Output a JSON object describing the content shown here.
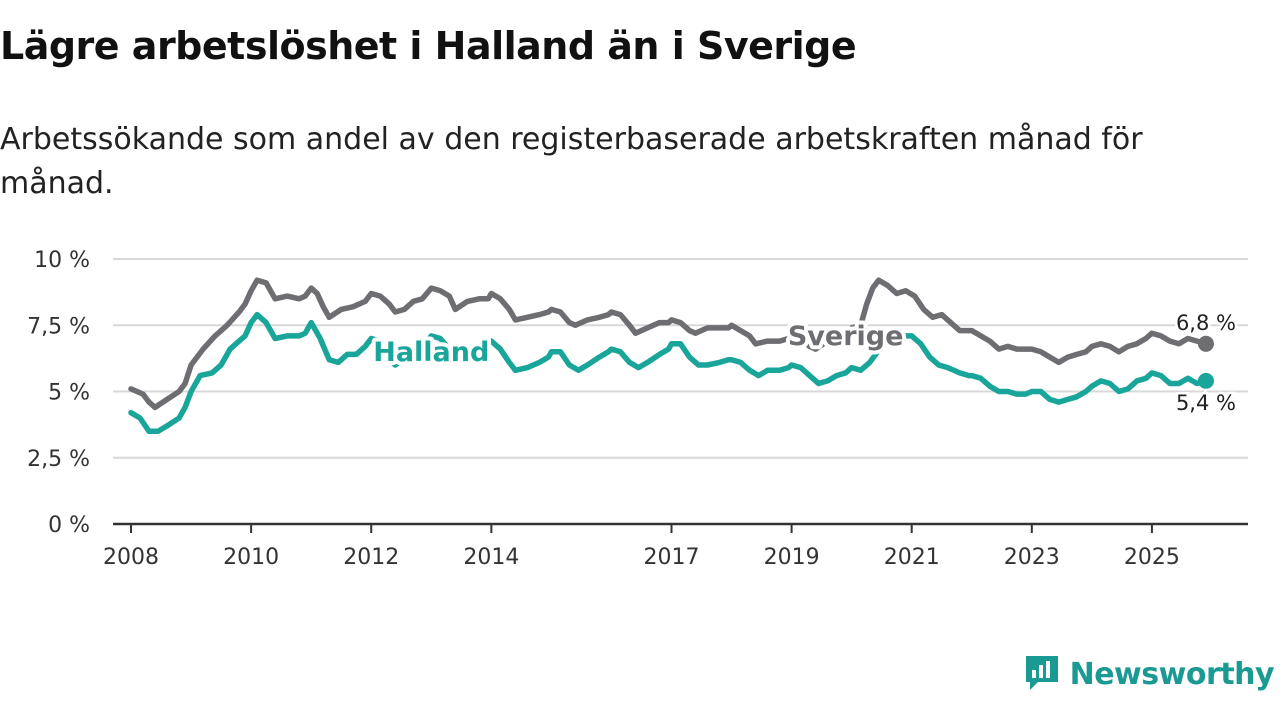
{
  "header": {
    "title": "Lägre arbetslöshet i Halland än i Sverige",
    "subtitle": "Arbetssökande som andel av den registerbaserade arbetskraften månad för månad."
  },
  "brand": {
    "name": "Newsworthy"
  },
  "colors": {
    "halland": "#19a59a",
    "sverige": "#6e6d72",
    "grid": "#d8d8d8",
    "axis": "#333333",
    "brand": "#1a9a93"
  },
  "chart_data": {
    "type": "line",
    "xlabel": "",
    "ylabel": "",
    "x_range": [
      2007.7,
      2026.6
    ],
    "ylim": [
      0,
      10
    ],
    "y_ticks": [
      {
        "value": 0,
        "label": "0 %"
      },
      {
        "value": 2.5,
        "label": "2,5 %"
      },
      {
        "value": 5,
        "label": "5 %"
      },
      {
        "value": 7.5,
        "label": "7,5 %"
      },
      {
        "value": 10,
        "label": "10 %"
      }
    ],
    "x_ticks": [
      {
        "value": 2008,
        "label": "2008"
      },
      {
        "value": 2010,
        "label": "2010"
      },
      {
        "value": 2012,
        "label": "2012"
      },
      {
        "value": 2014,
        "label": "2014"
      },
      {
        "value": 2017,
        "label": "2017"
      },
      {
        "value": 2019,
        "label": "2019"
      },
      {
        "value": 2021,
        "label": "2021"
      },
      {
        "value": 2023,
        "label": "2023"
      },
      {
        "value": 2025,
        "label": "2025"
      }
    ],
    "grid": true,
    "series": [
      {
        "name": "Sverige",
        "label": "Sverige",
        "color": "#6e6d72",
        "end_label": "6,8 %",
        "points": [
          [
            2008.0,
            5.1
          ],
          [
            2008.2,
            4.9
          ],
          [
            2008.3,
            4.6
          ],
          [
            2008.4,
            4.4
          ],
          [
            2008.6,
            4.7
          ],
          [
            2008.8,
            5.0
          ],
          [
            2008.9,
            5.3
          ],
          [
            2009.0,
            6.0
          ],
          [
            2009.2,
            6.6
          ],
          [
            2009.4,
            7.1
          ],
          [
            2009.6,
            7.5
          ],
          [
            2009.8,
            8.0
          ],
          [
            2009.9,
            8.3
          ],
          [
            2010.0,
            8.8
          ],
          [
            2010.1,
            9.2
          ],
          [
            2010.25,
            9.1
          ],
          [
            2010.4,
            8.5
          ],
          [
            2010.6,
            8.6
          ],
          [
            2010.8,
            8.5
          ],
          [
            2010.9,
            8.6
          ],
          [
            2011.0,
            8.9
          ],
          [
            2011.1,
            8.7
          ],
          [
            2011.2,
            8.2
          ],
          [
            2011.3,
            7.8
          ],
          [
            2011.5,
            8.1
          ],
          [
            2011.7,
            8.2
          ],
          [
            2011.9,
            8.4
          ],
          [
            2012.0,
            8.7
          ],
          [
            2012.15,
            8.6
          ],
          [
            2012.3,
            8.3
          ],
          [
            2012.4,
            8.0
          ],
          [
            2012.55,
            8.1
          ],
          [
            2012.7,
            8.4
          ],
          [
            2012.85,
            8.5
          ],
          [
            2013.0,
            8.9
          ],
          [
            2013.15,
            8.8
          ],
          [
            2013.3,
            8.6
          ],
          [
            2013.4,
            8.1
          ],
          [
            2013.6,
            8.4
          ],
          [
            2013.8,
            8.5
          ],
          [
            2013.95,
            8.5
          ],
          [
            2014.0,
            8.7
          ],
          [
            2014.15,
            8.5
          ],
          [
            2014.3,
            8.1
          ],
          [
            2014.4,
            7.7
          ],
          [
            2014.6,
            7.8
          ],
          [
            2014.8,
            7.9
          ],
          [
            2014.95,
            8.0
          ],
          [
            2015.0,
            8.1
          ],
          [
            2015.15,
            8.0
          ],
          [
            2015.3,
            7.6
          ],
          [
            2015.4,
            7.5
          ],
          [
            2015.6,
            7.7
          ],
          [
            2015.8,
            7.8
          ],
          [
            2015.95,
            7.9
          ],
          [
            2016.0,
            8.0
          ],
          [
            2016.15,
            7.9
          ],
          [
            2016.3,
            7.5
          ],
          [
            2016.4,
            7.2
          ],
          [
            2016.6,
            7.4
          ],
          [
            2016.8,
            7.6
          ],
          [
            2016.95,
            7.6
          ],
          [
            2017.0,
            7.7
          ],
          [
            2017.15,
            7.6
          ],
          [
            2017.3,
            7.3
          ],
          [
            2017.4,
            7.2
          ],
          [
            2017.6,
            7.4
          ],
          [
            2017.8,
            7.4
          ],
          [
            2017.95,
            7.4
          ],
          [
            2018.0,
            7.5
          ],
          [
            2018.15,
            7.3
          ],
          [
            2018.3,
            7.1
          ],
          [
            2018.4,
            6.8
          ],
          [
            2018.6,
            6.9
          ],
          [
            2018.8,
            6.9
          ],
          [
            2018.95,
            7.0
          ],
          [
            2019.0,
            7.1
          ],
          [
            2019.15,
            7.0
          ],
          [
            2019.3,
            6.7
          ],
          [
            2019.4,
            6.6
          ],
          [
            2019.6,
            6.9
          ],
          [
            2019.8,
            7.1
          ],
          [
            2019.95,
            7.2
          ],
          [
            2020.0,
            7.4
          ],
          [
            2020.15,
            7.5
          ],
          [
            2020.25,
            8.3
          ],
          [
            2020.35,
            8.9
          ],
          [
            2020.45,
            9.2
          ],
          [
            2020.6,
            9.0
          ],
          [
            2020.75,
            8.7
          ],
          [
            2020.9,
            8.8
          ],
          [
            2021.05,
            8.6
          ],
          [
            2021.2,
            8.1
          ],
          [
            2021.35,
            7.8
          ],
          [
            2021.5,
            7.9
          ],
          [
            2021.65,
            7.6
          ],
          [
            2021.8,
            7.3
          ],
          [
            2022.0,
            7.3
          ],
          [
            2022.15,
            7.1
          ],
          [
            2022.3,
            6.9
          ],
          [
            2022.45,
            6.6
          ],
          [
            2022.6,
            6.7
          ],
          [
            2022.75,
            6.6
          ],
          [
            2022.9,
            6.6
          ],
          [
            2023.0,
            6.6
          ],
          [
            2023.15,
            6.5
          ],
          [
            2023.3,
            6.3
          ],
          [
            2023.45,
            6.1
          ],
          [
            2023.6,
            6.3
          ],
          [
            2023.75,
            6.4
          ],
          [
            2023.9,
            6.5
          ],
          [
            2024.0,
            6.7
          ],
          [
            2024.15,
            6.8
          ],
          [
            2024.3,
            6.7
          ],
          [
            2024.45,
            6.5
          ],
          [
            2024.6,
            6.7
          ],
          [
            2024.75,
            6.8
          ],
          [
            2024.9,
            7.0
          ],
          [
            2025.0,
            7.2
          ],
          [
            2025.15,
            7.1
          ],
          [
            2025.3,
            6.9
          ],
          [
            2025.45,
            6.8
          ],
          [
            2025.6,
            7.0
          ],
          [
            2025.75,
            6.9
          ],
          [
            2025.9,
            6.8
          ]
        ]
      },
      {
        "name": "Halland",
        "label": "Halland",
        "color": "#19a59a",
        "end_label": "5,4 %",
        "points": [
          [
            2008.0,
            4.2
          ],
          [
            2008.15,
            4.0
          ],
          [
            2008.3,
            3.5
          ],
          [
            2008.45,
            3.5
          ],
          [
            2008.6,
            3.7
          ],
          [
            2008.8,
            4.0
          ],
          [
            2008.9,
            4.4
          ],
          [
            2009.0,
            5.0
          ],
          [
            2009.15,
            5.6
          ],
          [
            2009.35,
            5.7
          ],
          [
            2009.5,
            6.0
          ],
          [
            2009.65,
            6.6
          ],
          [
            2009.8,
            6.9
          ],
          [
            2009.9,
            7.1
          ],
          [
            2010.0,
            7.6
          ],
          [
            2010.1,
            7.9
          ],
          [
            2010.25,
            7.6
          ],
          [
            2010.4,
            7.0
          ],
          [
            2010.6,
            7.1
          ],
          [
            2010.8,
            7.1
          ],
          [
            2010.9,
            7.2
          ],
          [
            2011.0,
            7.6
          ],
          [
            2011.15,
            7.0
          ],
          [
            2011.3,
            6.2
          ],
          [
            2011.45,
            6.1
          ],
          [
            2011.6,
            6.4
          ],
          [
            2011.75,
            6.4
          ],
          [
            2011.9,
            6.7
          ],
          [
            2012.0,
            7.0
          ],
          [
            2012.15,
            6.9
          ],
          [
            2012.3,
            6.3
          ],
          [
            2012.4,
            6.0
          ],
          [
            2012.6,
            6.3
          ],
          [
            2012.75,
            6.5
          ],
          [
            2012.9,
            6.8
          ],
          [
            2013.0,
            7.1
          ],
          [
            2013.15,
            7.0
          ],
          [
            2013.3,
            6.6
          ],
          [
            2013.4,
            6.3
          ],
          [
            2013.6,
            6.5
          ],
          [
            2013.8,
            6.7
          ],
          [
            2013.95,
            6.8
          ],
          [
            2014.0,
            6.9
          ],
          [
            2014.15,
            6.6
          ],
          [
            2014.3,
            6.1
          ],
          [
            2014.4,
            5.8
          ],
          [
            2014.6,
            5.9
          ],
          [
            2014.8,
            6.1
          ],
          [
            2014.95,
            6.3
          ],
          [
            2015.0,
            6.5
          ],
          [
            2015.15,
            6.5
          ],
          [
            2015.3,
            6.0
          ],
          [
            2015.45,
            5.8
          ],
          [
            2015.6,
            6.0
          ],
          [
            2015.8,
            6.3
          ],
          [
            2015.95,
            6.5
          ],
          [
            2016.0,
            6.6
          ],
          [
            2016.15,
            6.5
          ],
          [
            2016.3,
            6.1
          ],
          [
            2016.45,
            5.9
          ],
          [
            2016.6,
            6.1
          ],
          [
            2016.8,
            6.4
          ],
          [
            2016.95,
            6.6
          ],
          [
            2017.0,
            6.8
          ],
          [
            2017.15,
            6.8
          ],
          [
            2017.3,
            6.3
          ],
          [
            2017.45,
            6.0
          ],
          [
            2017.6,
            6.0
          ],
          [
            2017.8,
            6.1
          ],
          [
            2017.95,
            6.2
          ],
          [
            2018.0,
            6.2
          ],
          [
            2018.15,
            6.1
          ],
          [
            2018.3,
            5.8
          ],
          [
            2018.45,
            5.6
          ],
          [
            2018.6,
            5.8
          ],
          [
            2018.8,
            5.8
          ],
          [
            2018.95,
            5.9
          ],
          [
            2019.0,
            6.0
          ],
          [
            2019.15,
            5.9
          ],
          [
            2019.3,
            5.6
          ],
          [
            2019.45,
            5.3
          ],
          [
            2019.6,
            5.4
          ],
          [
            2019.75,
            5.6
          ],
          [
            2019.9,
            5.7
          ],
          [
            2020.0,
            5.9
          ],
          [
            2020.15,
            5.8
          ],
          [
            2020.3,
            6.1
          ],
          [
            2020.5,
            6.7
          ],
          [
            2020.7,
            7.1
          ],
          [
            2020.85,
            7.1
          ],
          [
            2021.0,
            7.1
          ],
          [
            2021.15,
            6.8
          ],
          [
            2021.3,
            6.3
          ],
          [
            2021.45,
            6.0
          ],
          [
            2021.6,
            5.9
          ],
          [
            2021.8,
            5.7
          ],
          [
            2021.95,
            5.6
          ],
          [
            2022.0,
            5.6
          ],
          [
            2022.15,
            5.5
          ],
          [
            2022.3,
            5.2
          ],
          [
            2022.45,
            5.0
          ],
          [
            2022.6,
            5.0
          ],
          [
            2022.75,
            4.9
          ],
          [
            2022.9,
            4.9
          ],
          [
            2023.0,
            5.0
          ],
          [
            2023.15,
            5.0
          ],
          [
            2023.3,
            4.7
          ],
          [
            2023.45,
            4.6
          ],
          [
            2023.6,
            4.7
          ],
          [
            2023.75,
            4.8
          ],
          [
            2023.9,
            5.0
          ],
          [
            2024.0,
            5.2
          ],
          [
            2024.15,
            5.4
          ],
          [
            2024.3,
            5.3
          ],
          [
            2024.45,
            5.0
          ],
          [
            2024.6,
            5.1
          ],
          [
            2024.75,
            5.4
          ],
          [
            2024.9,
            5.5
          ],
          [
            2025.0,
            5.7
          ],
          [
            2025.15,
            5.6
          ],
          [
            2025.3,
            5.3
          ],
          [
            2025.45,
            5.3
          ],
          [
            2025.6,
            5.5
          ],
          [
            2025.75,
            5.3
          ],
          [
            2025.9,
            5.4
          ]
        ]
      }
    ]
  }
}
